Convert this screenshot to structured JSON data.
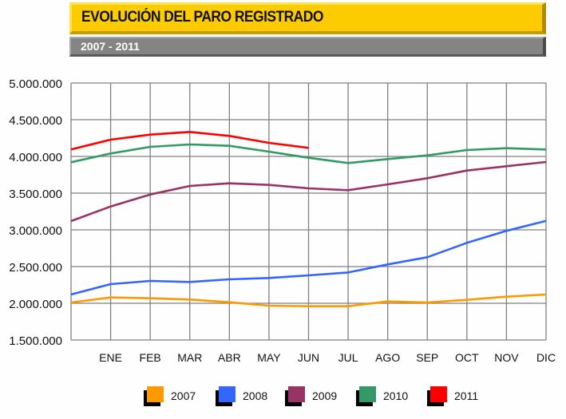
{
  "header": {
    "title": "EVOLUCIÓN DEL PARO REGISTRADO",
    "subtitle": "2007 - 2011"
  },
  "colors": {
    "title_bg": "#fdcc00",
    "subtitle_bg": "#848484",
    "grid": "#808080"
  },
  "legend": [
    {
      "label": "2007",
      "color": "#ff9900"
    },
    {
      "label": "2008",
      "color": "#3366ff"
    },
    {
      "label": "2009",
      "color": "#993366"
    },
    {
      "label": "2010",
      "color": "#339966"
    },
    {
      "label": "2011",
      "color": "#ff0000"
    }
  ],
  "chart_data": {
    "type": "line",
    "title": "EVOLUCIÓN DEL PARO REGISTRADO",
    "subtitle": "2007 - 2011",
    "xlabel": "",
    "ylabel": "",
    "categories": [
      "",
      "ENE",
      "FEB",
      "MAR",
      "ABR",
      "MAY",
      "JUN",
      "JUL",
      "AGO",
      "SEP",
      "OCT",
      "NOV",
      "DIC"
    ],
    "y_ticks": [
      "5.000.000",
      "4.500.000",
      "4.000.000",
      "3.500.000",
      "3.000.000",
      "2.500.000",
      "2.000.000",
      "1.500.000"
    ],
    "ylim": [
      1500000,
      5000000
    ],
    "grid": true,
    "legend_position": "bottom",
    "series": [
      {
        "name": "2007",
        "color": "#ff9900",
        "values": [
          2011000,
          2079000,
          2068000,
          2051000,
          2014000,
          1967000,
          1960000,
          1960000,
          2025000,
          2011000,
          2047000,
          2090000,
          2120000
        ]
      },
      {
        "name": "2008",
        "color": "#3366ff",
        "values": [
          2120000,
          2261000,
          2304000,
          2290000,
          2326000,
          2345000,
          2380000,
          2420000,
          2529000,
          2627000,
          2823000,
          2986000,
          3123000
        ]
      },
      {
        "name": "2009",
        "color": "#993366",
        "values": [
          3120000,
          3318000,
          3482000,
          3598000,
          3634000,
          3612000,
          3565000,
          3540000,
          3620000,
          3703000,
          3808000,
          3866000,
          3924000
        ]
      },
      {
        "name": "2010",
        "color": "#339966",
        "values": [
          3921000,
          4040000,
          4130000,
          4163000,
          4145000,
          4065000,
          3982000,
          3910000,
          3964000,
          4014000,
          4087000,
          4112000,
          4095000
        ]
      },
      {
        "name": "2011",
        "color": "#ff0000",
        "values": [
          4095000,
          4228000,
          4297000,
          4334000,
          4279000,
          4185000,
          4116000,
          null,
          null,
          null,
          null,
          null,
          null
        ]
      }
    ]
  }
}
